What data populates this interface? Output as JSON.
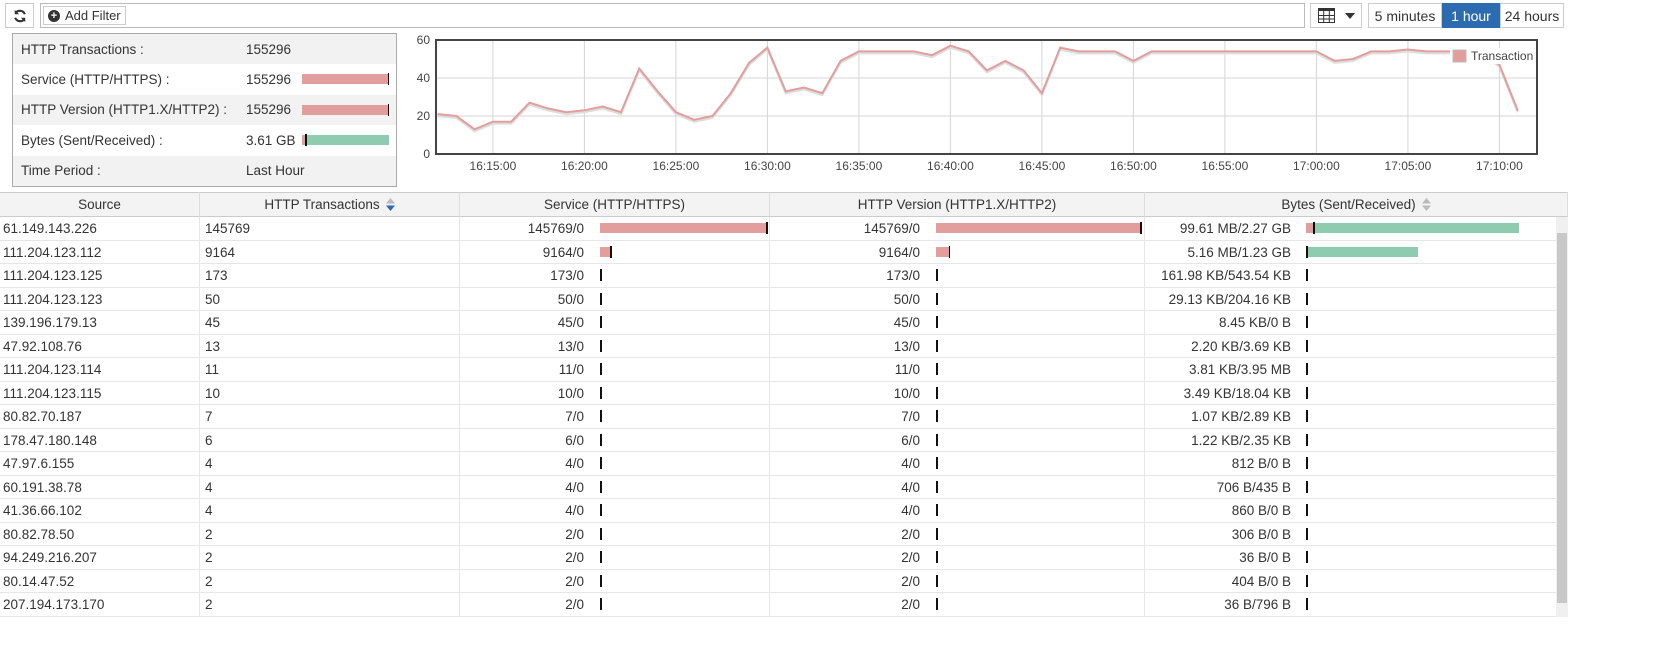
{
  "toolbar": {
    "refresh_icon": "refresh-icon",
    "add_filter": "Add Filter",
    "view_icon": "table-icon",
    "time_options": [
      "5 minutes",
      "1 hour",
      "24 hours"
    ],
    "selected_time": "1 hour",
    "accent": "#2c6bb0"
  },
  "summary": {
    "rows": [
      {
        "label": "HTTP Transactions :",
        "value": "155296"
      },
      {
        "label": "Service (HTTP/HTTPS) :",
        "value": "155296"
      },
      {
        "label": "HTTP Version (HTTP1.X/HTTP2) :",
        "value": "155296"
      },
      {
        "label": "Bytes (Sent/Received) :",
        "value": "3.61 GB"
      },
      {
        "label": "Time Period :",
        "value": "Last Hour"
      }
    ]
  },
  "chart_data": {
    "type": "line",
    "legend": "Transaction",
    "legend_position": "top-right",
    "ylim": [
      0,
      60
    ],
    "yticks": [
      0,
      20,
      40,
      60
    ],
    "xticks": [
      "16:15:00",
      "16:20:00",
      "16:25:00",
      "16:30:00",
      "16:35:00",
      "16:40:00",
      "16:45:00",
      "16:50:00",
      "16:55:00",
      "17:00:00",
      "17:05:00",
      "17:10:00"
    ],
    "x_start": "16:12",
    "x_step_minutes": 1,
    "values": [
      21,
      20,
      13,
      17,
      17,
      27,
      24,
      22,
      23,
      25,
      22,
      45,
      33,
      22,
      18,
      20,
      32,
      48,
      56,
      33,
      35,
      32,
      49,
      54,
      54,
      54,
      54,
      52,
      57,
      54,
      44,
      49,
      44,
      32,
      56,
      54,
      54,
      54,
      49,
      54,
      54,
      54,
      54,
      54,
      54,
      54,
      54,
      54,
      54,
      49,
      50,
      54,
      54,
      55,
      54,
      54,
      54,
      54,
      47,
      23
    ],
    "color": "#e29d9d",
    "grid": true
  },
  "table": {
    "headers": [
      "Source",
      "HTTP Transactions",
      "Service (HTTP/HTTPS)",
      "HTTP Version (HTTP1.X/HTTP2)",
      "Bytes (Sent/Received)"
    ],
    "sorted_column": "HTTP Transactions",
    "sort_direction": "descending",
    "rows": [
      {
        "source": "61.149.143.226",
        "tx": "145769",
        "service": "145769/0",
        "version": "145769/0",
        "bytes": "99.61 MB/2.27 GB",
        "tx_pct": 100,
        "sent_pct": 3.5,
        "recv_pct": 96.5
      },
      {
        "source": "111.204.123.112",
        "tx": "9164",
        "service": "9164/0",
        "version": "9164/0",
        "bytes": "5.16 MB/1.23 GB",
        "tx_pct": 6.3,
        "sent_pct": 0.2,
        "recv_pct": 52
      },
      {
        "source": "111.204.123.125",
        "tx": "173",
        "service": "173/0",
        "version": "173/0",
        "bytes": "161.98 KB/543.54 KB",
        "tx_pct": 0,
        "sent_pct": 0,
        "recv_pct": 0
      },
      {
        "source": "111.204.123.123",
        "tx": "50",
        "service": "50/0",
        "version": "50/0",
        "bytes": "29.13 KB/204.16 KB",
        "tx_pct": 0,
        "sent_pct": 0,
        "recv_pct": 0
      },
      {
        "source": "139.196.179.13",
        "tx": "45",
        "service": "45/0",
        "version": "45/0",
        "bytes": "8.45 KB/0 B",
        "tx_pct": 0,
        "sent_pct": 0,
        "recv_pct": 0
      },
      {
        "source": "47.92.108.76",
        "tx": "13",
        "service": "13/0",
        "version": "13/0",
        "bytes": "2.20 KB/3.69 KB",
        "tx_pct": 0,
        "sent_pct": 0,
        "recv_pct": 0
      },
      {
        "source": "111.204.123.114",
        "tx": "11",
        "service": "11/0",
        "version": "11/0",
        "bytes": "3.81 KB/3.95 MB",
        "tx_pct": 0,
        "sent_pct": 0,
        "recv_pct": 0
      },
      {
        "source": "111.204.123.115",
        "tx": "10",
        "service": "10/0",
        "version": "10/0",
        "bytes": "3.49 KB/18.04 KB",
        "tx_pct": 0,
        "sent_pct": 0,
        "recv_pct": 0
      },
      {
        "source": "80.82.70.187",
        "tx": "7",
        "service": "7/0",
        "version": "7/0",
        "bytes": "1.07 KB/2.89 KB",
        "tx_pct": 0,
        "sent_pct": 0,
        "recv_pct": 0
      },
      {
        "source": "178.47.180.148",
        "tx": "6",
        "service": "6/0",
        "version": "6/0",
        "bytes": "1.22 KB/2.35 KB",
        "tx_pct": 0,
        "sent_pct": 0,
        "recv_pct": 0
      },
      {
        "source": "47.97.6.155",
        "tx": "4",
        "service": "4/0",
        "version": "4/0",
        "bytes": "812 B/0 B",
        "tx_pct": 0,
        "sent_pct": 0,
        "recv_pct": 0
      },
      {
        "source": "60.191.38.78",
        "tx": "4",
        "service": "4/0",
        "version": "4/0",
        "bytes": "706 B/435 B",
        "tx_pct": 0,
        "sent_pct": 0,
        "recv_pct": 0
      },
      {
        "source": "41.36.66.102",
        "tx": "4",
        "service": "4/0",
        "version": "4/0",
        "bytes": "860 B/0 B",
        "tx_pct": 0,
        "sent_pct": 0,
        "recv_pct": 0
      },
      {
        "source": "80.82.78.50",
        "tx": "2",
        "service": "2/0",
        "version": "2/0",
        "bytes": "306 B/0 B",
        "tx_pct": 0,
        "sent_pct": 0,
        "recv_pct": 0
      },
      {
        "source": "94.249.216.207",
        "tx": "2",
        "service": "2/0",
        "version": "2/0",
        "bytes": "36 B/0 B",
        "tx_pct": 0,
        "sent_pct": 0,
        "recv_pct": 0
      },
      {
        "source": "80.14.47.52",
        "tx": "2",
        "service": "2/0",
        "version": "2/0",
        "bytes": "404 B/0 B",
        "tx_pct": 0,
        "sent_pct": 0,
        "recv_pct": 0
      },
      {
        "source": "207.194.173.170",
        "tx": "2",
        "service": "2/0",
        "version": "2/0",
        "bytes": "36 B/796 B",
        "tx_pct": 0,
        "sent_pct": 0,
        "recv_pct": 0
      }
    ]
  }
}
